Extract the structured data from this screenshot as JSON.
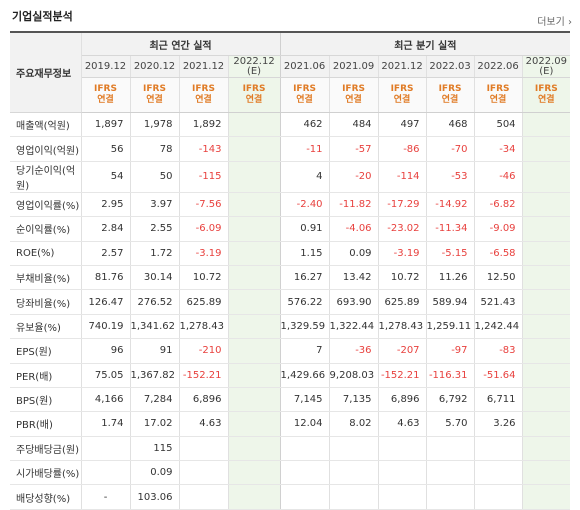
{
  "page": {
    "title": "기업실적분석",
    "more_label": "더보기",
    "more_arrow": "›"
  },
  "headers": {
    "label_header": "주요재무정보",
    "annual_group": "최근 연간 실적",
    "quarter_group": "최근 분기 실적",
    "annual_dates": [
      "2019.12",
      "2020.12",
      "2021.12",
      "2022.12"
    ],
    "annual_est_suffix": "(E)",
    "quarter_dates": [
      "2021.06",
      "2021.09",
      "2021.12",
      "2022.03",
      "2022.06",
      "2022.09"
    ],
    "quarter_est_suffix": "(E)",
    "ifrs_line1": "IFRS",
    "ifrs_line2": "연결"
  },
  "colors": {
    "negative": "#e8413e",
    "ifrs": "#e07b25",
    "estimate_bg": "#eef6ea"
  },
  "rows": [
    {
      "label": "매출액(억원)",
      "annual": [
        "1,897",
        "1,978",
        "1,892",
        ""
      ],
      "quarter": [
        "462",
        "484",
        "497",
        "468",
        "504",
        ""
      ]
    },
    {
      "label": "영업이익(억원)",
      "annual": [
        "56",
        "78",
        "-143",
        ""
      ],
      "quarter": [
        "-11",
        "-57",
        "-86",
        "-70",
        "-34",
        ""
      ]
    },
    {
      "label": "당기순이익(억원)",
      "annual": [
        "54",
        "50",
        "-115",
        ""
      ],
      "quarter": [
        "4",
        "-20",
        "-114",
        "-53",
        "-46",
        ""
      ]
    },
    {
      "label": "영업이익률(%)",
      "annual": [
        "2.95",
        "3.97",
        "-7.56",
        ""
      ],
      "quarter": [
        "-2.40",
        "-11.82",
        "-17.29",
        "-14.92",
        "-6.82",
        ""
      ]
    },
    {
      "label": "순이익률(%)",
      "annual": [
        "2.84",
        "2.55",
        "-6.09",
        ""
      ],
      "quarter": [
        "0.91",
        "-4.06",
        "-23.02",
        "-11.34",
        "-9.09",
        ""
      ]
    },
    {
      "label": "ROE(%)",
      "annual": [
        "2.57",
        "1.72",
        "-3.19",
        ""
      ],
      "quarter": [
        "1.15",
        "0.09",
        "-3.19",
        "-5.15",
        "-6.58",
        ""
      ]
    },
    {
      "label": "부채비율(%)",
      "annual": [
        "81.76",
        "30.14",
        "10.72",
        ""
      ],
      "quarter": [
        "16.27",
        "13.42",
        "10.72",
        "11.26",
        "12.50",
        ""
      ]
    },
    {
      "label": "당좌비율(%)",
      "annual": [
        "126.47",
        "276.52",
        "625.89",
        ""
      ],
      "quarter": [
        "576.22",
        "693.90",
        "625.89",
        "589.94",
        "521.43",
        ""
      ]
    },
    {
      "label": "유보율(%)",
      "annual": [
        "740.19",
        "1,341.62",
        "1,278.43",
        ""
      ],
      "quarter": [
        "1,329.59",
        "1,322.44",
        "1,278.43",
        "1,259.11",
        "1,242.44",
        ""
      ]
    },
    {
      "label": "EPS(원)",
      "annual": [
        "96",
        "91",
        "-210",
        ""
      ],
      "quarter": [
        "7",
        "-36",
        "-207",
        "-97",
        "-83",
        ""
      ]
    },
    {
      "label": "PER(배)",
      "annual": [
        "75.05",
        "1,367.82",
        "-152.21",
        ""
      ],
      "quarter": [
        "1,429.66",
        "9,208.03",
        "-152.21",
        "-116.31",
        "-51.64",
        ""
      ]
    },
    {
      "label": "BPS(원)",
      "annual": [
        "4,166",
        "7,284",
        "6,896",
        ""
      ],
      "quarter": [
        "7,145",
        "7,135",
        "6,896",
        "6,792",
        "6,711",
        ""
      ]
    },
    {
      "label": "PBR(배)",
      "annual": [
        "1.74",
        "17.02",
        "4.63",
        ""
      ],
      "quarter": [
        "12.04",
        "8.02",
        "4.63",
        "5.70",
        "3.26",
        ""
      ]
    },
    {
      "label": "주당배당금(원)",
      "annual": [
        "",
        "115",
        "",
        ""
      ],
      "quarter": [
        "",
        "",
        "",
        "",
        "",
        ""
      ]
    },
    {
      "label": "시가배당률(%)",
      "annual": [
        "",
        "0.09",
        "",
        ""
      ],
      "quarter": [
        "",
        "",
        "",
        "",
        "",
        ""
      ]
    },
    {
      "label": "배당성향(%)",
      "annual": [
        "-",
        "103.06",
        "",
        ""
      ],
      "quarter": [
        "",
        "",
        "",
        "",
        "",
        ""
      ]
    }
  ]
}
